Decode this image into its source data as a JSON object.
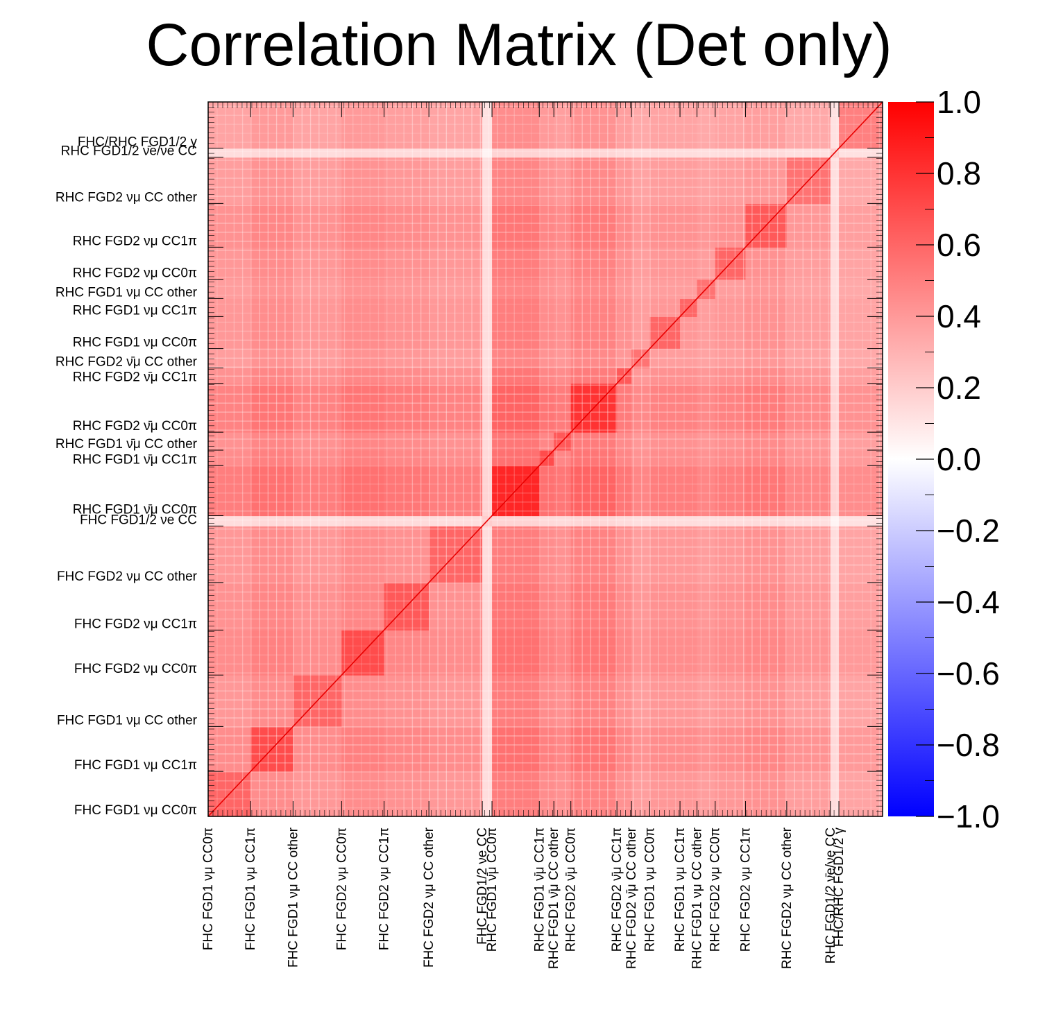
{
  "chart_data": {
    "type": "heatmap",
    "title": "Correlation Matrix (Det only)",
    "xlabel": "",
    "ylabel": "",
    "zlim": [
      -1.0,
      1.0
    ],
    "colorscale": {
      "min_color": "#0000ff",
      "mid_color": "#ffffff",
      "max_color": "#ff0000"
    },
    "colorbar_ticks": [
      "1.0",
      "0.8",
      "0.6",
      "0.4",
      "0.2",
      "0.0",
      "−0.2",
      "−0.4",
      "−0.6",
      "−0.8",
      "−1.0"
    ],
    "n_bins": 556,
    "categories": [
      {
        "label": "FHC FGD1 νμ CC0π",
        "start": 0,
        "end": 35,
        "level": 0.45
      },
      {
        "label": "FHC FGD1 νμ CC1π",
        "start": 35,
        "end": 70,
        "level": 0.55
      },
      {
        "label": "FHC FGD1 νμ CC other",
        "start": 70,
        "end": 110,
        "level": 0.45
      },
      {
        "label": "FHC FGD2 νμ CC0π",
        "start": 110,
        "end": 145,
        "level": 0.55
      },
      {
        "label": "FHC FGD2 νμ CC1π",
        "start": 145,
        "end": 182,
        "level": 0.5
      },
      {
        "label": "FHC FGD2 νμ CC other",
        "start": 182,
        "end": 226,
        "level": 0.45
      },
      {
        "label": "FHC FGD1/2 νe CC",
        "start": 226,
        "end": 234,
        "level": 0.05
      },
      {
        "label": "RHC FGD1 ν̄μ CC0π",
        "start": 234,
        "end": 273,
        "level": 0.7
      },
      {
        "label": "RHC FGD1 ν̄μ CC1π",
        "start": 273,
        "end": 285,
        "level": 0.55
      },
      {
        "label": "RHC FGD1 ν̄μ CC other",
        "start": 285,
        "end": 299,
        "level": 0.5
      },
      {
        "label": "RHC FGD2 ν̄μ CC0π",
        "start": 299,
        "end": 337,
        "level": 0.65
      },
      {
        "label": "RHC FGD2 ν̄μ CC1π",
        "start": 337,
        "end": 349,
        "level": 0.5
      },
      {
        "label": "RHC FGD2 ν̄μ CC other",
        "start": 349,
        "end": 364,
        "level": 0.4
      },
      {
        "label": "RHC FGD1 νμ CC0π",
        "start": 364,
        "end": 389,
        "level": 0.45
      },
      {
        "label": "RHC FGD1 νμ CC1π",
        "start": 389,
        "end": 403,
        "level": 0.45
      },
      {
        "label": "RHC FGD1 νμ CC other",
        "start": 403,
        "end": 418,
        "level": 0.4
      },
      {
        "label": "RHC FGD2 νμ CC0π",
        "start": 418,
        "end": 443,
        "level": 0.45
      },
      {
        "label": "RHC FGD2 νμ CC1π",
        "start": 443,
        "end": 477,
        "level": 0.5
      },
      {
        "label": "RHC FGD2 νμ CC other",
        "start": 477,
        "end": 513,
        "level": 0.4
      },
      {
        "label": "RHC FGD1/2 ν̄e/νe CC",
        "start": 513,
        "end": 520,
        "level": 0.05
      },
      {
        "label": "FHC/RHC FGD1/2 γ",
        "start": 520,
        "end": 556,
        "level": 0.35
      }
    ]
  }
}
